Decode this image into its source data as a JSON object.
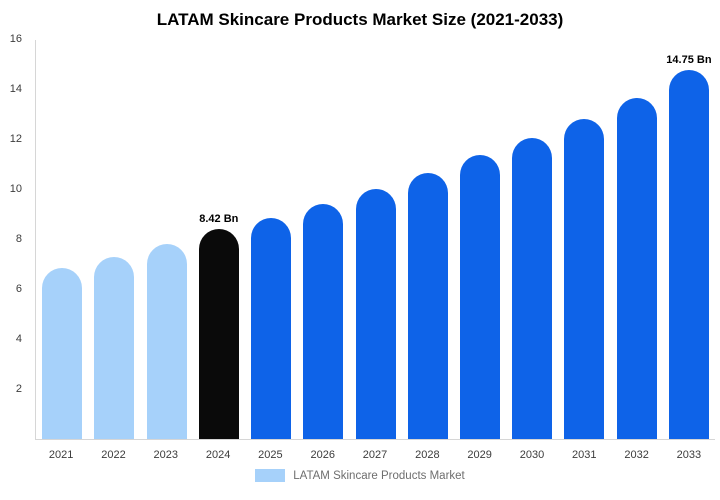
{
  "chart_data": {
    "type": "bar",
    "title": "LATAM Skincare Products Market Size (2021-2033)",
    "categories": [
      "2021",
      "2022",
      "2023",
      "2024",
      "2025",
      "2026",
      "2027",
      "2028",
      "2029",
      "2030",
      "2031",
      "2032",
      "2033"
    ],
    "values": [
      6.85,
      7.3,
      7.8,
      8.42,
      8.85,
      9.4,
      10.0,
      10.65,
      11.35,
      12.05,
      12.8,
      13.65,
      14.75
    ],
    "bar_labels": [
      "",
      "",
      "",
      "8.42 Bn",
      "",
      "",
      "",
      "",
      "",
      "",
      "",
      "",
      "14.75 Bn"
    ],
    "bar_colors": [
      "#a6d1fa",
      "#a6d1fa",
      "#a6d1fa",
      "#0a0a0a",
      "#0e63e8",
      "#0e63e8",
      "#0e63e8",
      "#0e63e8",
      "#0e63e8",
      "#0e63e8",
      "#0e63e8",
      "#0e63e8",
      "#0e63e8"
    ],
    "xlabel": "",
    "ylabel": "",
    "ylim": [
      0,
      16
    ],
    "yticks": [
      2,
      4,
      6,
      8,
      10,
      12,
      14,
      16
    ],
    "grid": false,
    "legend_position": "bottom",
    "legend_entries": [
      "LATAM Skincare Products Market"
    ]
  },
  "legend": {
    "label": "LATAM Skincare Products Market",
    "swatch_color": "#a6d1fa"
  },
  "colors": {
    "light_blue": "#a6d1fa",
    "blue": "#0e63e8",
    "black": "#0a0a0a",
    "axis_line": "#d6d6d6",
    "tick_text": "#3c3c3c"
  }
}
